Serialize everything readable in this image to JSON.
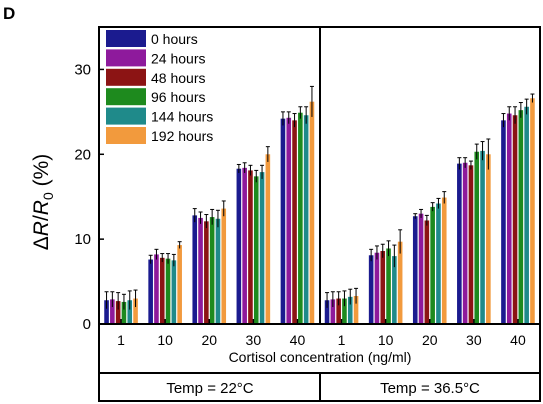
{
  "panel_label": "D",
  "chart_data": {
    "type": "bar",
    "ylabel": {
      "delta": "Δ",
      "r": "R",
      "slash": "/",
      "r0": "R",
      "sub": "0",
      "unit": " (%)"
    },
    "xlabel": "Cortisol concentration (ng/ml)",
    "ylim": [
      0,
      35
    ],
    "yticks": [
      "0",
      "10",
      "20",
      "30"
    ],
    "categories": [
      "1",
      "10",
      "20",
      "30",
      "40"
    ],
    "groups": [
      {
        "label": "Temp = 22°C",
        "series": [
          {
            "name": "0 hours",
            "values": [
              2.8,
              7.6,
              12.8,
              18.3,
              24.2
            ],
            "errors": [
              1.0,
              0.5,
              0.8,
              0.5,
              0.8
            ]
          },
          {
            "name": "24 hours",
            "values": [
              2.9,
              8.2,
              12.5,
              18.4,
              24.3
            ],
            "errors": [
              0.9,
              0.6,
              0.7,
              0.6,
              0.7
            ]
          },
          {
            "name": "48 hours",
            "values": [
              2.7,
              7.8,
              12.1,
              18.1,
              24.0
            ],
            "errors": [
              1.0,
              0.5,
              0.8,
              0.6,
              0.8
            ]
          },
          {
            "name": "96 hours",
            "values": [
              2.6,
              7.7,
              12.6,
              17.4,
              24.9
            ],
            "errors": [
              0.9,
              0.6,
              0.9,
              0.7,
              0.7
            ]
          },
          {
            "name": "144 hours",
            "values": [
              2.8,
              7.5,
              12.4,
              17.9,
              24.6
            ],
            "errors": [
              1.1,
              0.7,
              1.0,
              0.8,
              1.0
            ]
          },
          {
            "name": "192 hours",
            "values": [
              3.0,
              9.3,
              13.6,
              20.0,
              26.2
            ],
            "errors": [
              1.0,
              0.4,
              0.9,
              0.9,
              1.8
            ]
          }
        ]
      },
      {
        "label": "Temp = 36.5°C",
        "series": [
          {
            "name": "0 hours",
            "values": [
              2.8,
              8.1,
              12.7,
              18.9,
              24.0
            ],
            "errors": [
              0.9,
              0.7,
              0.3,
              0.7,
              0.8
            ]
          },
          {
            "name": "24 hours",
            "values": [
              2.9,
              8.4,
              13.0,
              19.0,
              24.8
            ],
            "errors": [
              0.9,
              0.8,
              0.5,
              0.6,
              0.8
            ]
          },
          {
            "name": "48 hours",
            "values": [
              3.0,
              8.6,
              12.2,
              18.7,
              24.6
            ],
            "errors": [
              0.8,
              0.8,
              0.6,
              0.5,
              1.0
            ]
          },
          {
            "name": "96 hours",
            "values": [
              3.0,
              8.9,
              13.8,
              20.3,
              25.2
            ],
            "errors": [
              0.9,
              0.9,
              0.5,
              0.9,
              0.9
            ]
          },
          {
            "name": "144 hours",
            "values": [
              3.2,
              8.0,
              14.2,
              20.4,
              25.6
            ],
            "errors": [
              0.9,
              1.3,
              0.6,
              1.1,
              0.9
            ]
          },
          {
            "name": "192 hours",
            "values": [
              3.3,
              9.7,
              14.9,
              20.0,
              26.6
            ],
            "errors": [
              0.9,
              1.4,
              0.7,
              1.8,
              0.5
            ]
          }
        ]
      }
    ],
    "colors": [
      "#1b1b8f",
      "#8e1a9c",
      "#8c1414",
      "#1e8a1e",
      "#1f8a8a",
      "#f29a3d"
    ],
    "legend": {
      "position": "top-left"
    },
    "grid": false
  }
}
